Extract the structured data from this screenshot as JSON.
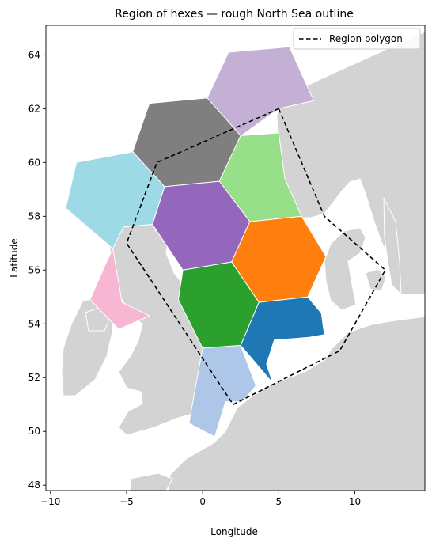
{
  "chart_data": {
    "type": "map",
    "title": "Region of hexes — rough North Sea outline",
    "xlabel": "Longitude",
    "ylabel": "Latitude",
    "xlim": [
      -10.3,
      14.6
    ],
    "ylim": [
      47.8,
      65.1
    ],
    "xticks": [
      -10,
      -5,
      0,
      5,
      10
    ],
    "yticks": [
      48,
      50,
      52,
      54,
      56,
      58,
      60,
      62,
      64
    ],
    "legend": {
      "position": "top-right",
      "entries": [
        "Region polygon"
      ]
    },
    "region_polygon": [
      [
        5,
        62
      ],
      [
        8,
        58
      ],
      [
        12,
        56
      ],
      [
        9,
        53
      ],
      [
        2,
        51
      ],
      [
        -5,
        57
      ],
      [
        -3,
        60
      ],
      [
        5,
        62
      ]
    ],
    "land_color": "#d3d3d3",
    "hexes": [
      {
        "id": "hex-lilac",
        "color": "#c5b0d5",
        "points": [
          [
            1.7,
            64.1
          ],
          [
            5.7,
            64.3
          ],
          [
            7.3,
            62.3
          ],
          [
            5.0,
            62.0
          ],
          [
            2.3,
            60.9
          ],
          [
            0.3,
            62.4
          ]
        ]
      },
      {
        "id": "hex-gray",
        "color": "#7f7f7f",
        "points": [
          [
            -3.5,
            62.2
          ],
          [
            0.3,
            62.4
          ],
          [
            2.5,
            61.0
          ],
          [
            1.1,
            59.3
          ],
          [
            -2.5,
            59.1
          ],
          [
            -4.6,
            60.4
          ]
        ]
      },
      {
        "id": "hex-lightgreen",
        "color": "#98df8a",
        "points": [
          [
            2.5,
            61.0
          ],
          [
            5.0,
            61.1
          ],
          [
            5.4,
            59.4
          ],
          [
            6.5,
            58.0
          ],
          [
            3.1,
            57.8
          ],
          [
            1.1,
            59.3
          ]
        ]
      },
      {
        "id": "hex-cyan",
        "color": "#9edae5",
        "points": [
          [
            -8.3,
            60.0
          ],
          [
            -4.6,
            60.4
          ],
          [
            -2.5,
            59.1
          ],
          [
            -3.3,
            57.7
          ],
          [
            -5.2,
            57.6
          ],
          [
            -5.9,
            56.8
          ],
          [
            -9.0,
            58.3
          ]
        ]
      },
      {
        "id": "hex-purple",
        "color": "#9467bd",
        "points": [
          [
            -2.5,
            59.1
          ],
          [
            1.1,
            59.3
          ],
          [
            3.1,
            57.8
          ],
          [
            1.9,
            56.3
          ],
          [
            -1.3,
            56.0
          ],
          [
            -3.3,
            57.7
          ]
        ]
      },
      {
        "id": "hex-orange",
        "color": "#ff7f0e",
        "points": [
          [
            3.1,
            57.8
          ],
          [
            6.5,
            58.0
          ],
          [
            8.1,
            56.5
          ],
          [
            6.9,
            55.0
          ],
          [
            3.7,
            54.8
          ],
          [
            1.9,
            56.3
          ]
        ]
      },
      {
        "id": "hex-green",
        "color": "#2ca02c",
        "points": [
          [
            -1.3,
            56.0
          ],
          [
            1.9,
            56.3
          ],
          [
            3.7,
            54.8
          ],
          [
            2.5,
            53.2
          ],
          [
            0.0,
            53.1
          ],
          [
            -1.6,
            54.9
          ]
        ]
      },
      {
        "id": "hex-blue",
        "color": "#1f77b4",
        "points": [
          [
            3.7,
            54.8
          ],
          [
            6.9,
            55.0
          ],
          [
            7.8,
            54.4
          ],
          [
            8.0,
            53.6
          ],
          [
            7.0,
            53.5
          ],
          [
            4.7,
            53.4
          ],
          [
            4.2,
            52.5
          ],
          [
            4.6,
            51.8
          ],
          [
            2.5,
            53.2
          ]
        ]
      },
      {
        "id": "hex-lightblue",
        "color": "#aec7e8",
        "points": [
          [
            0.0,
            53.1
          ],
          [
            2.5,
            53.2
          ],
          [
            3.5,
            51.7
          ],
          [
            2.6,
            51.1
          ],
          [
            1.5,
            51.1
          ],
          [
            0.8,
            49.8
          ],
          [
            -0.9,
            50.3
          ]
        ]
      },
      {
        "id": "hex-pink",
        "color": "#f7b6d2",
        "points": [
          [
            -6.4,
            56.2
          ],
          [
            -5.9,
            56.8
          ],
          [
            -5.3,
            54.8
          ],
          [
            -3.5,
            54.3
          ],
          [
            -5.5,
            53.8
          ],
          [
            -7.4,
            54.9
          ]
        ]
      }
    ]
  }
}
